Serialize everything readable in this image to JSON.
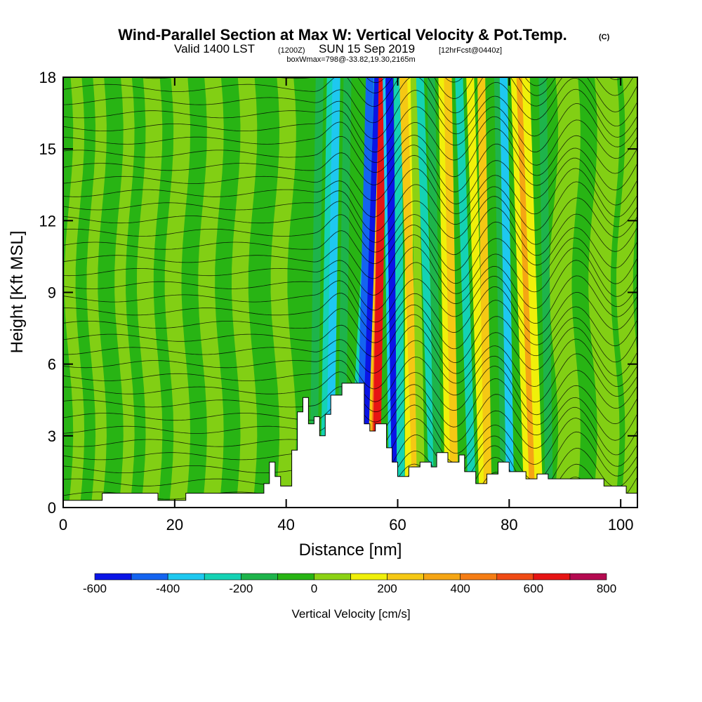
{
  "chart_data": {
    "type": "heatmap",
    "title": {
      "main": "Wind-Parallel Section at Max W: Vertical Velocity & Pot.Temp.",
      "copyright": "(C)",
      "valid_prefix": "Valid 1400 LST",
      "valid_utc": "(1200Z)",
      "valid_date": "SUN 15 Sep 2019",
      "forecast": "[12hrFcst@0440z]",
      "box_info": "boxWmax=798@-33.82,19.30,2165m"
    },
    "xlabel": "Distance [nm]",
    "ylabel": "Height [Kft MSL]",
    "xlim": [
      0,
      103
    ],
    "ylim": [
      0,
      18
    ],
    "xticks": [
      0,
      20,
      40,
      60,
      80,
      100
    ],
    "yticks": [
      0,
      3,
      6,
      9,
      12,
      15,
      18
    ],
    "colorbar": {
      "label": "Vertical Velocity [cm/s]",
      "levels": [
        -600,
        -500,
        -400,
        -300,
        -200,
        -100,
        0,
        100,
        200,
        300,
        400,
        500,
        600,
        700,
        800
      ],
      "tick_labels": [
        "-600",
        "-400",
        "-200",
        "0",
        "200",
        "400",
        "600",
        "800"
      ],
      "colors": [
        "#0a14e6",
        "#1464f0",
        "#1ec8f0",
        "#14d2b4",
        "#1eb44b",
        "#28b414",
        "#8cd214",
        "#f0f00a",
        "#f5c814",
        "#f5a514",
        "#f57d14",
        "#f04b14",
        "#e61414",
        "#b40a50"
      ]
    },
    "annotation": "Filled contours of vertical velocity with potential temperature contour lines; terrain shown in white"
  }
}
